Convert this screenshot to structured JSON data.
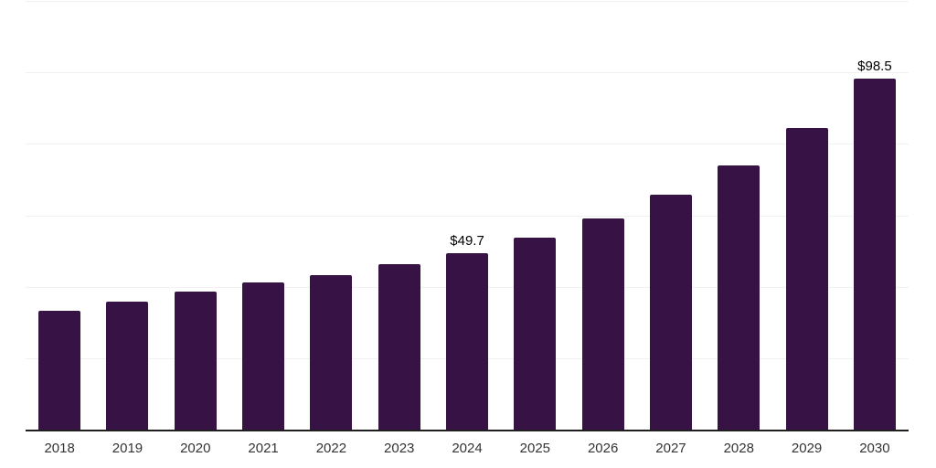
{
  "chart_data": {
    "type": "bar",
    "categories": [
      "2018",
      "2019",
      "2020",
      "2021",
      "2022",
      "2023",
      "2024",
      "2025",
      "2026",
      "2027",
      "2028",
      "2029",
      "2030"
    ],
    "values": [
      33.6,
      36.1,
      38.9,
      41.5,
      43.4,
      46.5,
      49.7,
      54.0,
      59.4,
      66.0,
      74.1,
      84.6,
      98.5
    ],
    "data_labels": [
      "",
      "",
      "",
      "",
      "",
      "",
      "$49.7",
      "",
      "",
      "",
      "",
      "",
      "$98.5"
    ],
    "title": "",
    "xlabel": "",
    "ylabel": "",
    "ylim": [
      0,
      120
    ],
    "gridline_step": 20,
    "grid": true,
    "legend": false,
    "colors": {
      "bar": "#371245",
      "gridline": "#f1f1f1",
      "axis": "#1f1f1f",
      "data_label": "#000000",
      "tick_label": "#333333",
      "background": "#ffffff"
    }
  }
}
